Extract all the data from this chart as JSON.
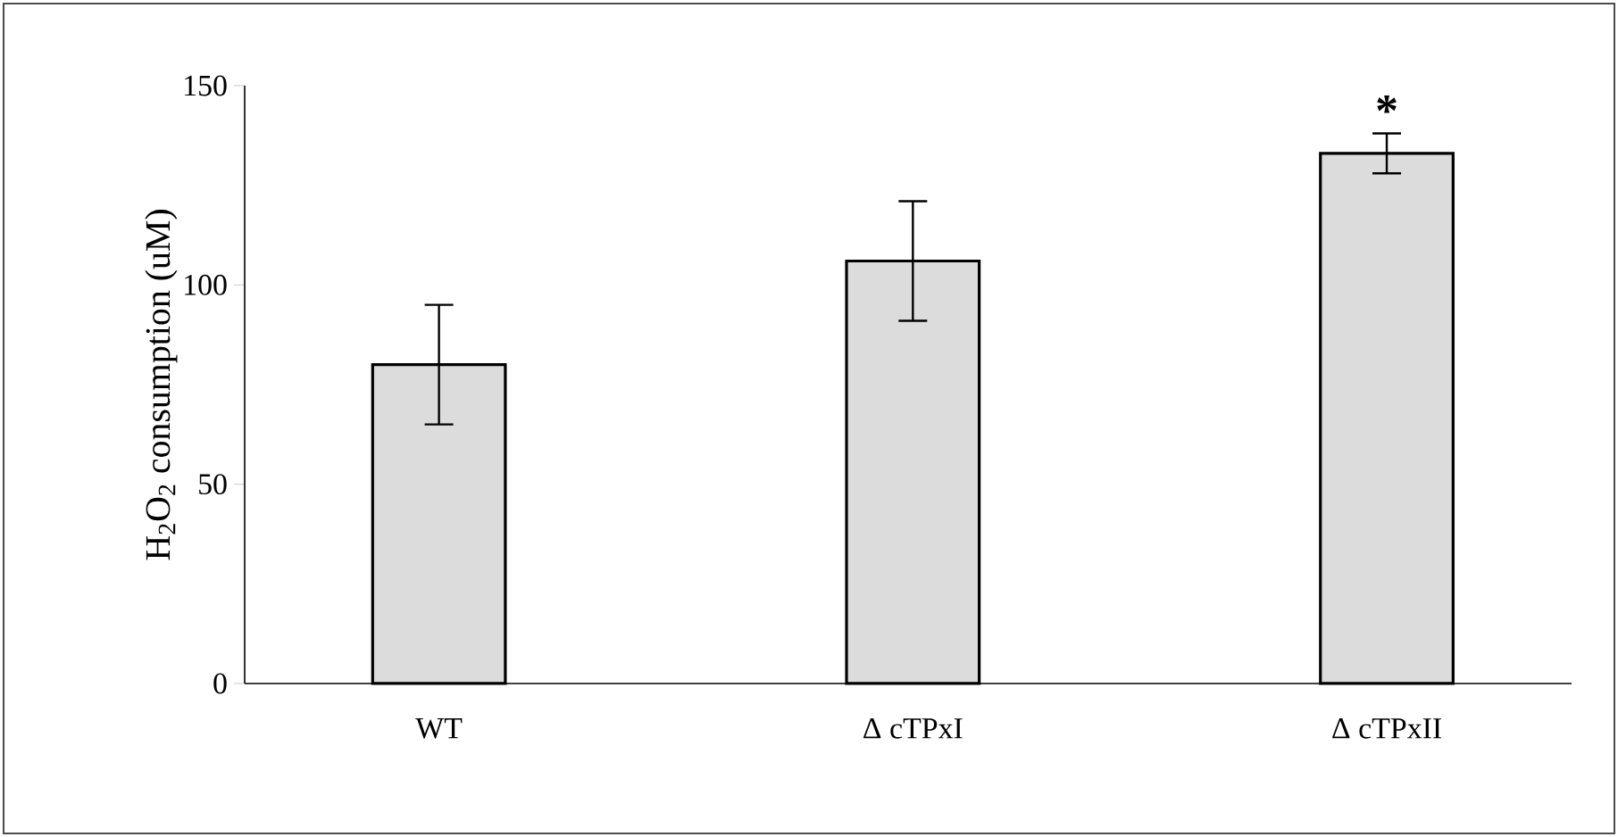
{
  "chart_data": {
    "type": "bar",
    "ylabel": "H$_{2}$O$_{2}$ consumption (uM)",
    "categories": [
      "WT",
      "Δ cTPxI",
      "Δ cTPxII"
    ],
    "values": [
      80,
      106,
      133
    ],
    "errors": [
      15,
      15,
      5
    ],
    "color": "#dcdcdc",
    "ylim": [
      0,
      150
    ],
    "yticks": [
      0,
      50,
      100,
      150
    ],
    "annotations": [
      "*"
    ]
  }
}
